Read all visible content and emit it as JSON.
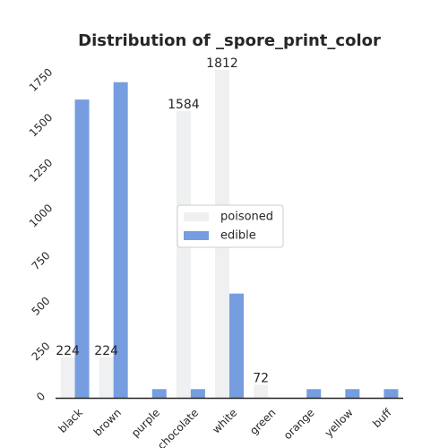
{
  "chart_data": {
    "type": "bar",
    "title": "Distribution of _spore_print_color",
    "categories": [
      "black",
      "brown",
      "purple",
      "chocolate",
      "white",
      "green",
      "orange",
      "yellow",
      "buff"
    ],
    "series": [
      {
        "name": "poisoned",
        "color": "#eff0f1",
        "values": [
          224,
          224,
          0,
          1584,
          1812,
          72,
          0,
          0,
          0
        ]
      },
      {
        "name": "edible",
        "color": "#759ddf",
        "values": [
          1648,
          1744,
          48,
          48,
          576,
          0,
          48,
          48,
          48
        ]
      }
    ],
    "data_labels": [
      {
        "series": 0,
        "index": 0,
        "text": "224"
      },
      {
        "series": 0,
        "index": 1,
        "text": "224"
      },
      {
        "series": 0,
        "index": 3,
        "text": "1584"
      },
      {
        "series": 0,
        "index": 4,
        "text": "1812"
      },
      {
        "series": 0,
        "index": 5,
        "text": "72"
      }
    ],
    "y_ticks": [
      "0",
      "250",
      "500",
      "750",
      "1000",
      "1250",
      "1500",
      "1750"
    ],
    "ylim": [
      0,
      1812
    ],
    "xlabel": "",
    "ylabel": "",
    "grid": false,
    "legend": "center",
    "axis_color": "#262626",
    "tick_rotation_deg": -45
  }
}
